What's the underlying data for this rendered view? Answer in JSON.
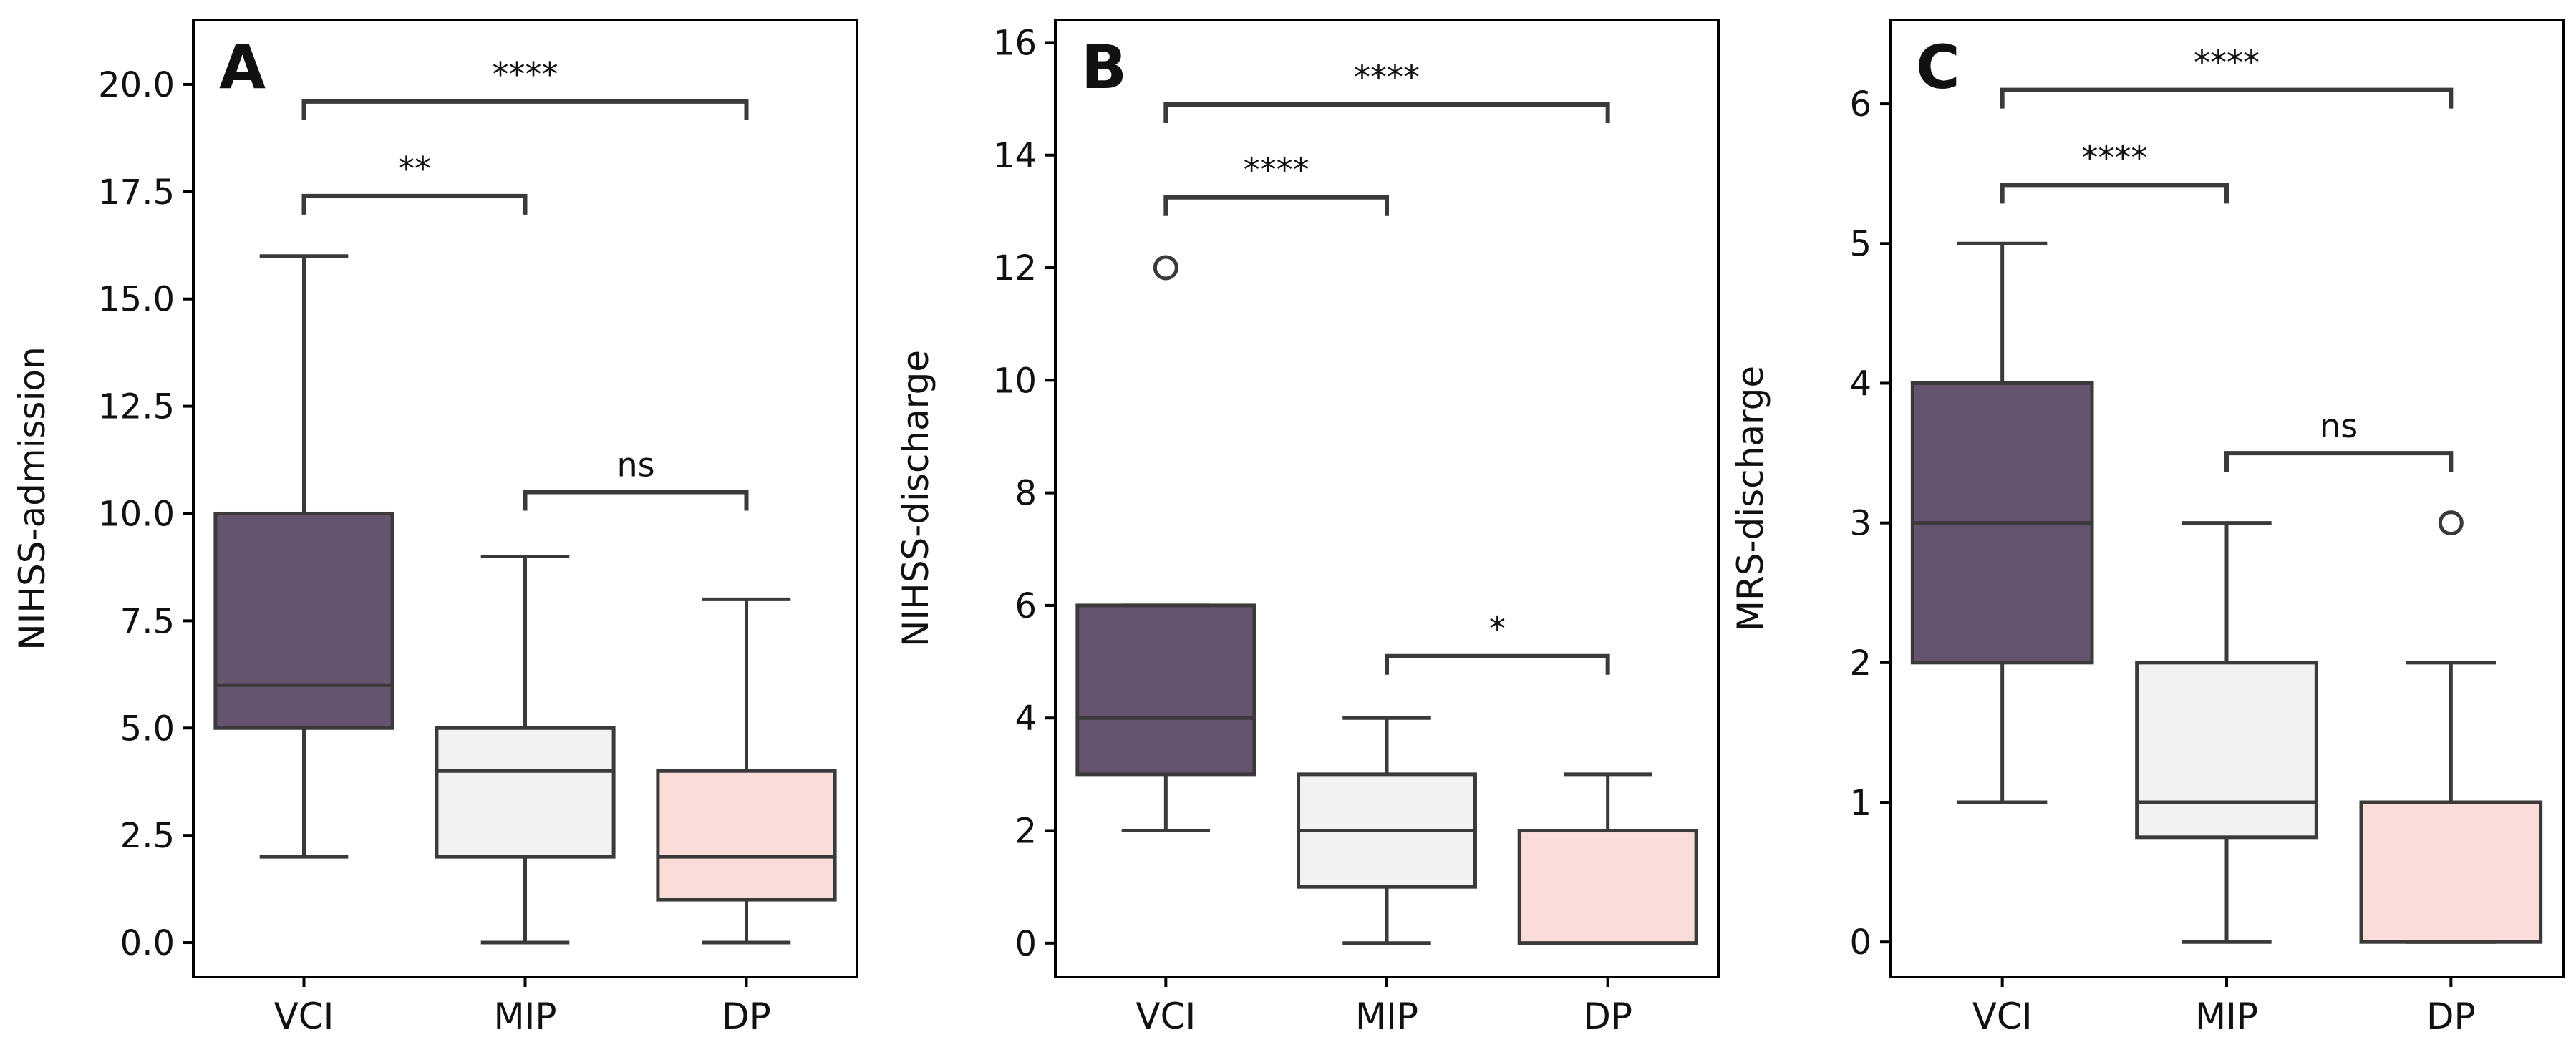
{
  "colors": {
    "axis": "#000000",
    "box_edge": "#3a3a3a",
    "VCI": "#66536e",
    "MIP": "#f2f2f2",
    "DP": "#fadcd8"
  },
  "chart_data": [
    {
      "type": "box",
      "panel_label": "A",
      "ylabel": "NIHSS-admission",
      "categories": [
        "VCI",
        "MIP",
        "DP"
      ],
      "ylim": [
        -0.8,
        21.5
      ],
      "yticks": [
        0.0,
        2.5,
        5.0,
        7.5,
        10.0,
        12.5,
        15.0,
        17.5,
        20.0
      ],
      "ytick_labels": [
        "0.0",
        "2.5",
        "5.0",
        "7.5",
        "10.0",
        "12.5",
        "15.0",
        "17.5",
        "20.0"
      ],
      "boxes": [
        {
          "category": "VCI",
          "whisker_low": 2,
          "q1": 5,
          "median": 6,
          "q3": 10,
          "whisker_high": 16,
          "outliers": []
        },
        {
          "category": "MIP",
          "whisker_low": 0,
          "q1": 2,
          "median": 4,
          "q3": 5,
          "whisker_high": 9,
          "outliers": []
        },
        {
          "category": "DP",
          "whisker_low": 0,
          "q1": 1,
          "median": 2,
          "q3": 4,
          "whisker_high": 8,
          "outliers": []
        }
      ],
      "significance": [
        {
          "from": "VCI",
          "to": "DP",
          "label": "****",
          "y": 19.6
        },
        {
          "from": "VCI",
          "to": "MIP",
          "label": "**",
          "y": 17.4
        },
        {
          "from": "MIP",
          "to": "DP",
          "label": "ns",
          "y": 10.5
        }
      ]
    },
    {
      "type": "box",
      "panel_label": "B",
      "ylabel": "NIHSS-discharge",
      "categories": [
        "VCI",
        "MIP",
        "DP"
      ],
      "ylim": [
        -0.6,
        16.4
      ],
      "yticks": [
        0,
        2,
        4,
        6,
        8,
        10,
        12,
        14,
        16
      ],
      "ytick_labels": [
        "0",
        "2",
        "4",
        "6",
        "8",
        "10",
        "12",
        "14",
        "16"
      ],
      "boxes": [
        {
          "category": "VCI",
          "whisker_low": 2,
          "q1": 3,
          "median": 4,
          "q3": 6,
          "whisker_high": 6,
          "outliers": [
            12
          ]
        },
        {
          "category": "MIP",
          "whisker_low": 0,
          "q1": 1,
          "median": 2,
          "q3": 3,
          "whisker_high": 4,
          "outliers": []
        },
        {
          "category": "DP",
          "whisker_low": 0,
          "q1": 0,
          "median": 0,
          "q3": 2,
          "whisker_high": 3,
          "outliers": []
        }
      ],
      "significance": [
        {
          "from": "VCI",
          "to": "DP",
          "label": "****",
          "y": 14.9
        },
        {
          "from": "VCI",
          "to": "MIP",
          "label": "****",
          "y": 13.25
        },
        {
          "from": "MIP",
          "to": "DP",
          "label": "*",
          "y": 5.1
        }
      ]
    },
    {
      "type": "box",
      "panel_label": "C",
      "ylabel": "MRS-discharge",
      "categories": [
        "VCI",
        "MIP",
        "DP"
      ],
      "ylim": [
        -0.25,
        6.6
      ],
      "yticks": [
        0,
        1,
        2,
        3,
        4,
        5,
        6
      ],
      "ytick_labels": [
        "0",
        "1",
        "2",
        "3",
        "4",
        "5",
        "6"
      ],
      "boxes": [
        {
          "category": "VCI",
          "whisker_low": 1,
          "q1": 2,
          "median": 3,
          "q3": 4,
          "whisker_high": 5,
          "outliers": []
        },
        {
          "category": "MIP",
          "whisker_low": 0,
          "q1": 0.75,
          "median": 1,
          "q3": 2,
          "whisker_high": 3,
          "outliers": []
        },
        {
          "category": "DP",
          "whisker_low": 0,
          "q1": 0,
          "median": 1,
          "q3": 1,
          "whisker_high": 2,
          "outliers": [
            3
          ]
        }
      ],
      "significance": [
        {
          "from": "VCI",
          "to": "DP",
          "label": "****",
          "y": 6.1
        },
        {
          "from": "VCI",
          "to": "MIP",
          "label": "****",
          "y": 5.42
        },
        {
          "from": "MIP",
          "to": "DP",
          "label": "ns",
          "y": 3.5
        }
      ]
    }
  ]
}
